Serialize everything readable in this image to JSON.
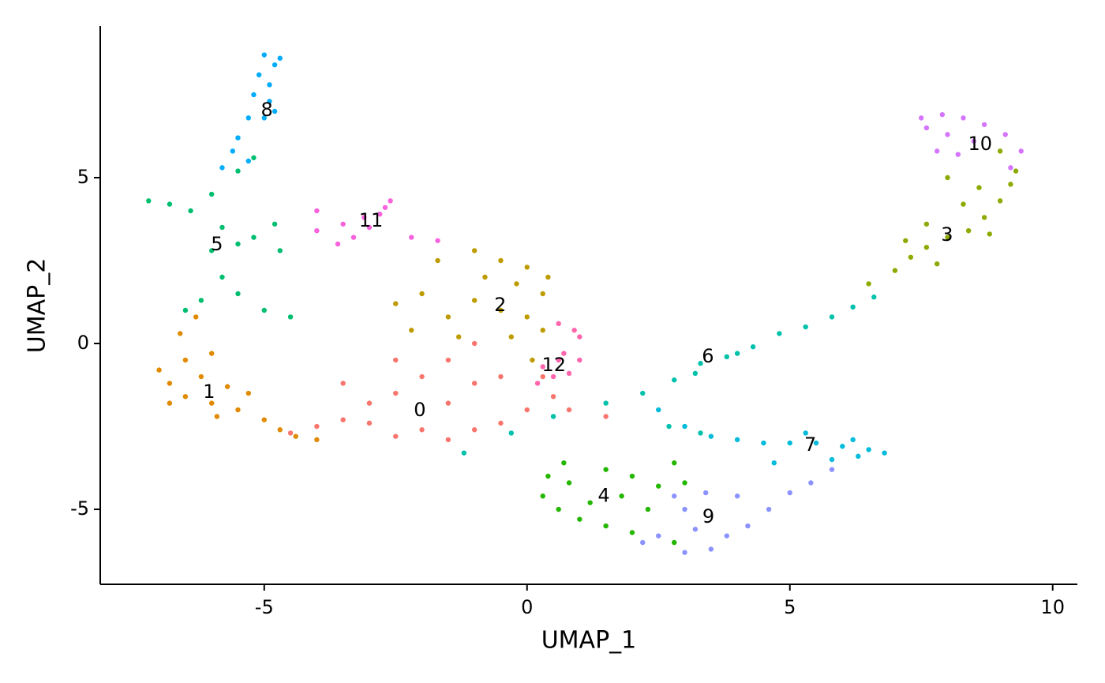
{
  "chart_data": {
    "type": "scatter",
    "xlabel": "UMAP_1",
    "ylabel": "UMAP_2",
    "xlim": [
      -8.12,
      10.47
    ],
    "ylim": [
      -7.26,
      9.57
    ],
    "xticks": [
      -5,
      0,
      5,
      10
    ],
    "yticks": [
      -5,
      0,
      5
    ],
    "grid": false,
    "legend": false,
    "series": [
      {
        "name": "0",
        "color": "#F8766D",
        "label_x": -2.04,
        "label_y": -2.02,
        "x": [
          -4.5,
          -4,
          -3.5,
          -3,
          -2.5,
          -2,
          -1.5,
          -1,
          -0.5,
          0,
          0.5,
          -2.5,
          -2,
          -1.5,
          -1,
          -0.5,
          -3,
          -1.5,
          -2.5,
          -1,
          0.8,
          1.5,
          -3.5,
          0.3
        ],
        "y": [
          -2.7,
          -2.5,
          -2.3,
          -2.4,
          -2.8,
          -2.6,
          -2.9,
          -2.6,
          -2.4,
          -2,
          -1.6,
          -1.5,
          -1,
          -0.5,
          -1.2,
          -1,
          -1.8,
          -1.8,
          -0.5,
          0,
          -2,
          -2.2,
          -1.2,
          -1
        ]
      },
      {
        "name": "1",
        "color": "#E18A00",
        "label_x": -6.05,
        "label_y": -1.48,
        "x": [
          -7,
          -6.8,
          -6.5,
          -6.5,
          -6.2,
          -6,
          -6,
          -5.7,
          -5.5,
          -5.3,
          -5,
          -4.7,
          -4.4,
          -4,
          -6.6,
          -6.3,
          -5.9,
          -6.8
        ],
        "y": [
          -0.8,
          -1.2,
          -0.5,
          -1.6,
          -1,
          -1.8,
          -0.3,
          -1.3,
          -2,
          -1.5,
          -2.3,
          -2.6,
          -2.8,
          -2.9,
          0.3,
          0.8,
          -2.2,
          -1.8
        ]
      },
      {
        "name": "2",
        "color": "#BE9C00",
        "label_x": -0.51,
        "label_y": 1.14,
        "x": [
          -0.5,
          0,
          0.4,
          0.3,
          -0.2,
          -0.8,
          -1,
          -0.5,
          0,
          0.3,
          -1.5,
          -1.3,
          -2,
          -2.5,
          -1.7,
          -0.3,
          0.1,
          -2.2,
          -1
        ],
        "y": [
          2.5,
          2.3,
          2,
          1.5,
          1.8,
          2,
          1.3,
          1,
          0.8,
          0.4,
          0.8,
          0.2,
          1.5,
          1.2,
          2.5,
          0.2,
          -0.5,
          0.4,
          2.8
        ]
      },
      {
        "name": "3",
        "color": "#8CAB00",
        "label_x": 7.99,
        "label_y": 3.26,
        "x": [
          6.5,
          7,
          7.3,
          7.6,
          8,
          8.4,
          8.7,
          9,
          9.2,
          9.3,
          8.8,
          7.8,
          8.3,
          7.2,
          8.6,
          9,
          8,
          7.6
        ],
        "y": [
          1.8,
          2.2,
          2.6,
          2.9,
          3.2,
          3.4,
          3.8,
          4.3,
          4.8,
          5.2,
          3.3,
          2.4,
          4.2,
          3.1,
          4.7,
          5.8,
          5,
          3.6
        ]
      },
      {
        "name": "4",
        "color": "#24B700",
        "label_x": 1.46,
        "label_y": -4.6,
        "x": [
          0.3,
          0.6,
          1,
          1.5,
          2,
          2.5,
          2,
          1.5,
          0.8,
          1.2,
          3,
          2.8,
          0.7,
          1.8,
          2.3,
          0.4,
          2.8
        ],
        "y": [
          -4.6,
          -5,
          -5.3,
          -5.5,
          -5.7,
          -4.3,
          -4,
          -3.8,
          -4.2,
          -4.8,
          -4.2,
          -3.6,
          -3.6,
          -4.6,
          -5,
          -4,
          -6
        ]
      },
      {
        "name": "5",
        "color": "#00BE70",
        "label_x": -5.9,
        "label_y": 2.98,
        "x": [
          -7.2,
          -6.8,
          -6.4,
          -6,
          -5.8,
          -6,
          -5.5,
          -5.2,
          -5.8,
          -5.5,
          -6.2,
          -5,
          -4.7,
          -5.5,
          -5.2,
          -4.5,
          -6.5,
          -4.8
        ],
        "y": [
          4.3,
          4.2,
          4,
          4.5,
          3.5,
          2.8,
          3,
          3.2,
          2,
          1.5,
          1.3,
          1,
          2.8,
          5.2,
          5.6,
          0.8,
          1,
          3.6
        ]
      },
      {
        "name": "6",
        "color": "#00C1AB",
        "label_x": 3.44,
        "label_y": -0.4,
        "x": [
          -1.2,
          -0.3,
          0.5,
          1.5,
          2.2,
          2.8,
          3.3,
          3.8,
          4.3,
          4.8,
          5.3,
          5.8,
          6.2,
          6.6,
          3.2,
          4,
          2.7,
          3.3
        ],
        "y": [
          -3.3,
          -2.7,
          -2.2,
          -1.8,
          -1.5,
          -1.1,
          -0.6,
          -0.4,
          -0.1,
          0.3,
          0.5,
          0.8,
          1.1,
          1.4,
          -0.9,
          -0.3,
          -2.5,
          -2.7
        ]
      },
      {
        "name": "7",
        "color": "#00BBDA",
        "label_x": 5.39,
        "label_y": -3.07,
        "x": [
          2.5,
          3,
          3.5,
          4,
          4.5,
          5,
          5.5,
          6,
          6.5,
          6.8,
          5.8,
          6.3,
          4.7,
          5.3,
          6.2
        ],
        "y": [
          -2,
          -2.5,
          -2.8,
          -2.9,
          -3,
          -3,
          -3,
          -3.1,
          -3.2,
          -3.3,
          -3.5,
          -3.4,
          -3.6,
          -2.7,
          -2.9
        ]
      },
      {
        "name": "8",
        "color": "#00ACFC",
        "label_x": -4.95,
        "label_y": 7.02,
        "x": [
          -5,
          -4.8,
          -5.1,
          -4.9,
          -5.2,
          -4.9,
          -5,
          -5.3,
          -5.5,
          -5.6,
          -5.3,
          -5.8,
          -4.8,
          -4.7
        ],
        "y": [
          8.7,
          8.4,
          8.1,
          7.8,
          7.5,
          7.3,
          6.8,
          6.8,
          6.2,
          5.8,
          5.5,
          5.3,
          7,
          8.6
        ]
      },
      {
        "name": "9",
        "color": "#8B93FF",
        "label_x": 3.45,
        "label_y": -5.24,
        "x": [
          2.5,
          3,
          3.5,
          3.8,
          4.2,
          4.6,
          5,
          5.4,
          3,
          3.4,
          2.8,
          4,
          3.2,
          2.2,
          5.8
        ],
        "y": [
          -5.8,
          -6.3,
          -6.2,
          -5.8,
          -5.5,
          -5,
          -4.5,
          -4.2,
          -5,
          -4.5,
          -4.6,
          -4.6,
          -5.6,
          -6,
          -3.8
        ]
      },
      {
        "name": "10",
        "color": "#D575FE",
        "label_x": 8.62,
        "label_y": 6,
        "x": [
          7.5,
          7.9,
          8.3,
          8.7,
          9.1,
          9.4,
          8,
          8.5,
          7.6,
          7.8,
          9.2,
          8.2
        ],
        "y": [
          6.8,
          6.9,
          6.8,
          6.6,
          6.3,
          5.8,
          6.3,
          6.1,
          6.5,
          5.8,
          5.3,
          5.7
        ]
      },
      {
        "name": "11",
        "color": "#F962DD",
        "label_x": -2.97,
        "label_y": 3.69,
        "x": [
          -4,
          -3.6,
          -3.3,
          -3,
          -2.8,
          -2.6,
          -2.7,
          -3.1,
          -3.5,
          -2.2,
          -1.7,
          -4
        ],
        "y": [
          3.4,
          3,
          3.2,
          3.5,
          3.9,
          4.3,
          4.1,
          3.8,
          3.6,
          3.2,
          3.1,
          4
        ]
      },
      {
        "name": "12",
        "color": "#FF65AC",
        "label_x": 0.51,
        "label_y": -0.67,
        "x": [
          0.6,
          0.9,
          1,
          0.8,
          0.5,
          0.3,
          0.7,
          1,
          0.2,
          0.6
        ],
        "y": [
          0.6,
          0.4,
          -0.5,
          -0.9,
          -1,
          -0.7,
          -0.3,
          0.2,
          -1.2,
          -0.5
        ]
      }
    ]
  }
}
